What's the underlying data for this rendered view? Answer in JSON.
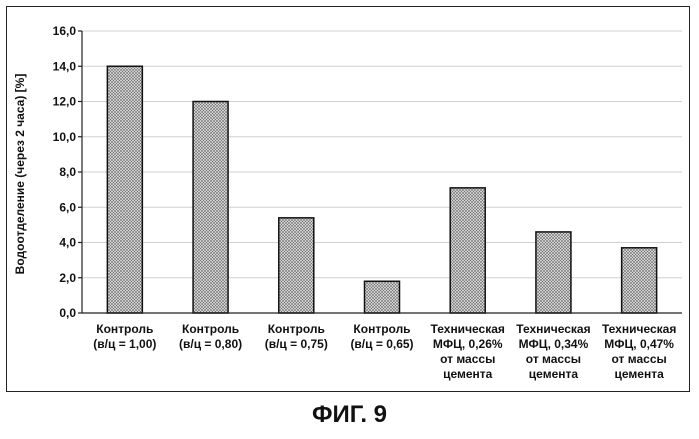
{
  "chart_data": {
    "type": "bar",
    "title": "",
    "xlabel": "",
    "ylabel": "Водоотделение (через 2 часа) [%]",
    "ylim": [
      0,
      16
    ],
    "yticks": [
      "0,0",
      "2,0",
      "4,0",
      "6,0",
      "8,0",
      "10,0",
      "12,0",
      "14,0",
      "16,0"
    ],
    "grid": true,
    "legend": "none",
    "categories": [
      [
        "Контроль",
        "(в/ц = 1,00)"
      ],
      [
        "Контроль",
        "(в/ц = 0,80)"
      ],
      [
        "Контроль",
        "(в/ц = 0,75)"
      ],
      [
        "Контроль",
        "(в/ц = 0,65)"
      ],
      [
        "Техническая",
        "МФЦ, 0,26%",
        "от массы",
        "цемента"
      ],
      [
        "Техническая",
        "МФЦ, 0,34%",
        "от массы",
        "цемента"
      ],
      [
        "Техническая",
        "МФЦ, 0,47%",
        "от массы",
        "цемента"
      ]
    ],
    "values": [
      14.0,
      12.0,
      5.4,
      1.8,
      7.1,
      4.6,
      3.7
    ]
  },
  "caption": "ФИГ. 9"
}
